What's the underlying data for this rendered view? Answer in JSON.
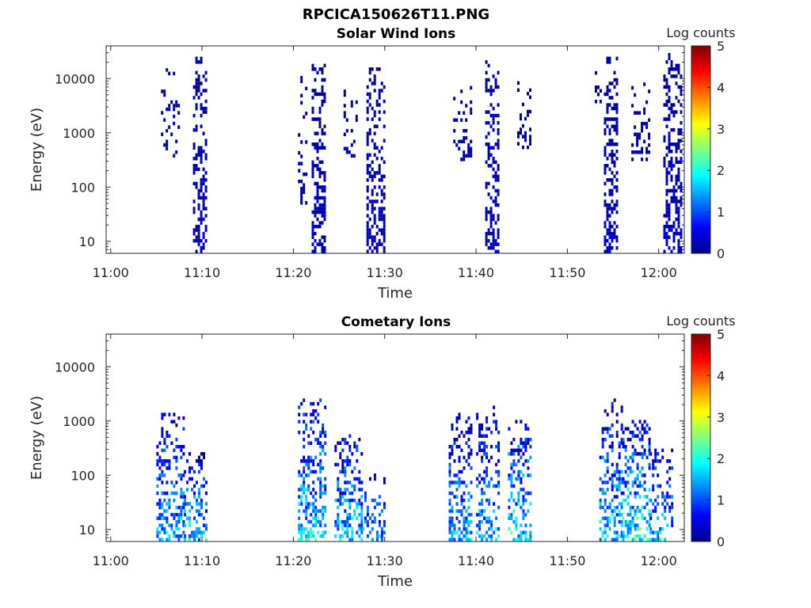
{
  "figure": {
    "title": "RPCICA150626T11.PNG"
  },
  "colormap": [
    "#00008f",
    "#0000ff",
    "#0080ff",
    "#00ffff",
    "#80ff80",
    "#ffff00",
    "#ff8000",
    "#ff0000",
    "#800000"
  ],
  "chart_data": [
    {
      "type": "heatmap",
      "title": "Solar Wind Ions",
      "xlabel": "Time",
      "ylabel": "Energy (eV)",
      "yscale": "log",
      "xlim": [
        "10:59.5",
        "12:02.8"
      ],
      "ylim": [
        6,
        40000
      ],
      "x_ticks": [
        "11:00",
        "11:10",
        "11:20",
        "11:30",
        "11:40",
        "11:50",
        "12:00"
      ],
      "y_ticks": [
        10,
        100,
        1000,
        10000
      ],
      "y_tick_labels": [
        "10",
        "100",
        "1000",
        "10000"
      ],
      "colorbar": {
        "label": "Log counts",
        "range": [
          0,
          5
        ],
        "ticks": [
          "0",
          "1",
          "2",
          "3",
          "4",
          "5"
        ]
      },
      "bursts": [
        {
          "time_start": "11:05.5",
          "time_end": "11:07.5",
          "energy_min": 350,
          "energy_max": 15000,
          "log_counts": 0.1,
          "density": 0.3
        },
        {
          "time_start": "11:09.0",
          "time_end": "11:10.5",
          "energy_min": 6,
          "energy_max": 25000,
          "log_counts": 0.2,
          "density": 0.55
        },
        {
          "time_start": "11:20.5",
          "time_end": "11:21.5",
          "energy_min": 30,
          "energy_max": 12000,
          "log_counts": 0.1,
          "density": 0.2
        },
        {
          "time_start": "11:22.0",
          "time_end": "11:23.5",
          "energy_min": 6,
          "energy_max": 18000,
          "log_counts": 0.2,
          "density": 0.55
        },
        {
          "time_start": "11:25.5",
          "time_end": "11:27.0",
          "energy_min": 300,
          "energy_max": 8000,
          "log_counts": 0.1,
          "density": 0.3
        },
        {
          "time_start": "11:28.0",
          "time_end": "11:30.0",
          "energy_min": 6,
          "energy_max": 16000,
          "log_counts": 0.2,
          "density": 0.5
        },
        {
          "time_start": "11:37.5",
          "time_end": "11:39.5",
          "energy_min": 300,
          "energy_max": 7000,
          "log_counts": 0.1,
          "density": 0.25
        },
        {
          "time_start": "11:41.0",
          "time_end": "11:42.5",
          "energy_min": 6,
          "energy_max": 20000,
          "log_counts": 0.2,
          "density": 0.55
        },
        {
          "time_start": "11:44.5",
          "time_end": "11:46.0",
          "energy_min": 500,
          "energy_max": 8000,
          "log_counts": 0.1,
          "density": 0.3
        },
        {
          "time_start": "11:53.0",
          "time_end": "11:54.0",
          "energy_min": 3000,
          "energy_max": 12000,
          "log_counts": 0.1,
          "density": 0.2
        },
        {
          "time_start": "11:54.0",
          "time_end": "11:55.5",
          "energy_min": 6,
          "energy_max": 22000,
          "log_counts": 0.2,
          "density": 0.55
        },
        {
          "time_start": "11:57.0",
          "time_end": "11:59.0",
          "energy_min": 300,
          "energy_max": 9000,
          "log_counts": 0.1,
          "density": 0.3
        },
        {
          "time_start": "12:00.5",
          "time_end": "12:02.5",
          "energy_min": 6,
          "energy_max": 28000,
          "log_counts": 0.25,
          "density": 0.55
        }
      ]
    },
    {
      "type": "heatmap",
      "title": "Cometary Ions",
      "xlabel": "Time",
      "ylabel": "Energy (eV)",
      "yscale": "log",
      "xlim": [
        "10:59.5",
        "12:02.8"
      ],
      "ylim": [
        6,
        40000
      ],
      "x_ticks": [
        "11:00",
        "11:10",
        "11:20",
        "11:30",
        "11:40",
        "11:50",
        "12:00"
      ],
      "y_ticks": [
        10,
        100,
        1000,
        10000
      ],
      "y_tick_labels": [
        "10",
        "100",
        "1000",
        "10000"
      ],
      "colorbar": {
        "label": "Log counts",
        "range": [
          0,
          5
        ],
        "ticks": [
          "0",
          "1",
          "2",
          "3",
          "4",
          "5"
        ]
      },
      "bursts": [
        {
          "time_start": "11:05.0",
          "time_end": "11:08.0",
          "energy_min": 6,
          "energy_max": 1300,
          "log_counts": 1.2,
          "density": 0.45
        },
        {
          "time_start": "11:08.0",
          "time_end": "11:10.5",
          "energy_min": 6,
          "energy_max": 250,
          "log_counts": 1.3,
          "density": 0.45
        },
        {
          "time_start": "11:20.5",
          "time_end": "11:23.5",
          "energy_min": 6,
          "energy_max": 2500,
          "log_counts": 1.4,
          "density": 0.5
        },
        {
          "time_start": "11:24.5",
          "time_end": "11:27.5",
          "energy_min": 6,
          "energy_max": 500,
          "log_counts": 1.3,
          "density": 0.45
        },
        {
          "time_start": "11:27.5",
          "time_end": "11:30.0",
          "energy_min": 6,
          "energy_max": 100,
          "log_counts": 1.1,
          "density": 0.35
        },
        {
          "time_start": "11:37.0",
          "time_end": "11:39.5",
          "energy_min": 6,
          "energy_max": 1300,
          "log_counts": 1.2,
          "density": 0.45
        },
        {
          "time_start": "11:40.0",
          "time_end": "11:42.5",
          "energy_min": 6,
          "energy_max": 1700,
          "log_counts": 1.2,
          "density": 0.45
        },
        {
          "time_start": "11:43.5",
          "time_end": "11:46.0",
          "energy_min": 6,
          "energy_max": 900,
          "log_counts": 1.5,
          "density": 0.5
        },
        {
          "time_start": "11:53.5",
          "time_end": "11:56.0",
          "energy_min": 6,
          "energy_max": 2300,
          "log_counts": 1.3,
          "density": 0.45
        },
        {
          "time_start": "11:56.0",
          "time_end": "11:59.0",
          "energy_min": 6,
          "energy_max": 1000,
          "log_counts": 1.6,
          "density": 0.5
        },
        {
          "time_start": "11:59.0",
          "time_end": "12:01.5",
          "energy_min": 6,
          "energy_max": 300,
          "log_counts": 1.2,
          "density": 0.4
        }
      ]
    }
  ]
}
